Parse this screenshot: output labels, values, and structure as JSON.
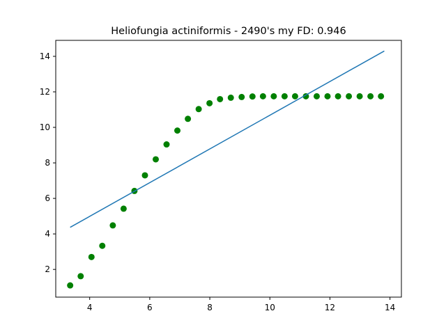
{
  "chart_data": {
    "type": "scatter",
    "title": "Heliofungia actiniformis - 2490's my FD: 0.946",
    "xlabel": "",
    "ylabel": "",
    "xlim": [
      2.87,
      14.38
    ],
    "ylim": [
      0.44,
      14.9
    ],
    "xticks": [
      4,
      6,
      8,
      10,
      12,
      14
    ],
    "yticks": [
      2,
      4,
      6,
      8,
      10,
      12,
      14
    ],
    "grid": false,
    "series": [
      {
        "kind": "scatter",
        "color": "#008000",
        "x": [
          3.35,
          3.7,
          4.06,
          4.42,
          4.77,
          5.13,
          5.49,
          5.84,
          6.2,
          6.56,
          6.92,
          7.27,
          7.63,
          7.99,
          8.34,
          8.7,
          9.06,
          9.42,
          9.77,
          10.13,
          10.49,
          10.84,
          11.2,
          11.56,
          11.92,
          12.27,
          12.63,
          12.99,
          13.35,
          13.7
        ],
        "y": [
          1.1,
          1.62,
          2.7,
          3.33,
          4.48,
          5.42,
          6.42,
          7.3,
          8.2,
          9.04,
          9.82,
          10.48,
          11.03,
          11.36,
          11.59,
          11.67,
          11.71,
          11.74,
          11.75,
          11.75,
          11.75,
          11.75,
          11.75,
          11.75,
          11.75,
          11.75,
          11.75,
          11.75,
          11.75,
          11.75
        ]
      },
      {
        "kind": "line",
        "color": "#1f77b4",
        "x": [
          3.35,
          13.81
        ],
        "y": [
          4.37,
          14.3
        ]
      }
    ]
  }
}
